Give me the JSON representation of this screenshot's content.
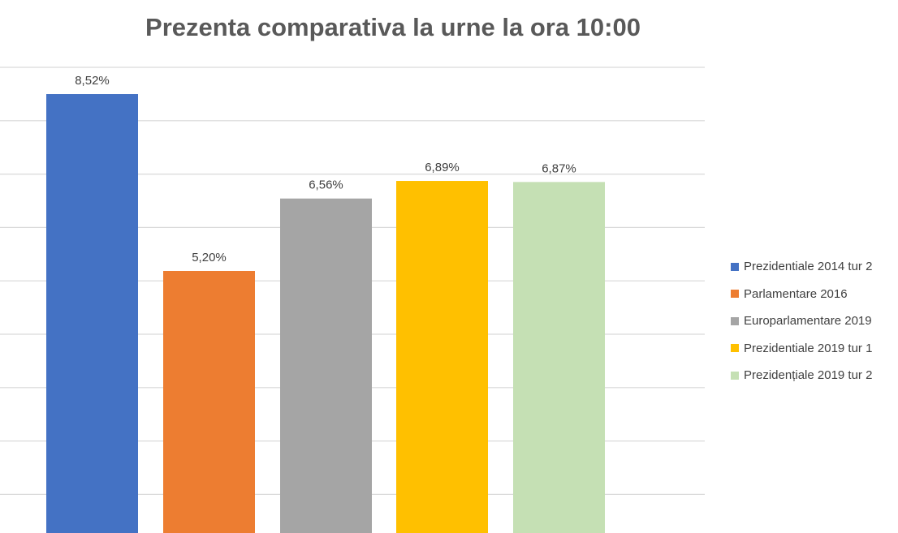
{
  "chart_data": {
    "type": "bar",
    "title": "Prezenta comparativa la urne la ora 10:00",
    "xlabel": "",
    "ylabel": "",
    "categories": [
      "Prezidentiale 2014 tur 2",
      "Parlamentare 2016",
      "Europarlamentare 2019",
      "Prezidentiale 2019 tur 1",
      "Prezidențiale 2019 tur 2"
    ],
    "values": [
      8.52,
      5.2,
      6.56,
      6.89,
      6.87
    ],
    "data_labels": [
      "8,52%",
      "5,20%",
      "6,56%",
      "6,89%",
      "6,87%"
    ],
    "colors": [
      "#4472C4",
      "#ED7D31",
      "#A5A5A5",
      "#FFC000",
      "#C5E0B4"
    ],
    "ylim": [
      0,
      9
    ],
    "grid": true,
    "legend": {
      "position": "right",
      "entries": [
        "Prezidentiale 2014 tur 2",
        "Parlamentare 2016",
        "Europarlamentare 2019",
        "Prezidentiale 2019 tur 1",
        "Prezidențiale 2019 tur 2"
      ]
    }
  }
}
